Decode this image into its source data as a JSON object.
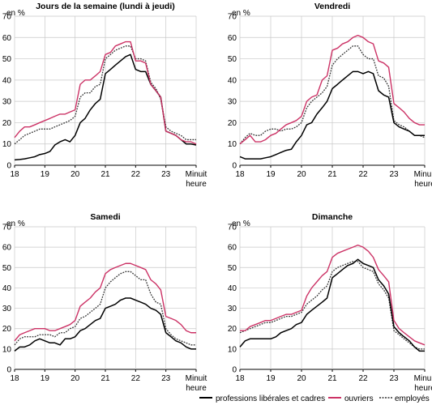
{
  "colors": {
    "professions": "#000000",
    "ouvriers": "#cc3366",
    "employes": "#333333"
  },
  "legend": [
    {
      "key": "professions",
      "label": "professions libérales et cadres",
      "style": "solid"
    },
    {
      "key": "ouvriers",
      "label": "ouvriers",
      "style": "solid"
    },
    {
      "key": "employes",
      "label": "employés",
      "style": "dotted"
    }
  ],
  "chart_data": [
    {
      "type": "line",
      "title": "Jours de la semaine (lundi à jeudi)",
      "ylabel": "en %",
      "xlabel": "heure",
      "ylim": [
        0,
        70
      ],
      "xlim": [
        18,
        24
      ],
      "yticks": [
        "0",
        "10",
        "20",
        "30",
        "40",
        "50",
        "60",
        "70"
      ],
      "xticks": [
        "18",
        "19",
        "20",
        "21",
        "22",
        "23",
        "Minuit"
      ],
      "x": [
        18.0,
        18.17,
        18.33,
        18.5,
        18.67,
        18.83,
        19.0,
        19.17,
        19.33,
        19.5,
        19.67,
        19.83,
        20.0,
        20.17,
        20.33,
        20.5,
        20.67,
        20.83,
        21.0,
        21.17,
        21.33,
        21.5,
        21.67,
        21.83,
        22.0,
        22.17,
        22.33,
        22.5,
        22.67,
        22.83,
        23.0,
        23.17,
        23.33,
        23.5,
        23.67,
        23.83,
        24.0
      ],
      "series": [
        {
          "name": "professions libérales et cadres",
          "key": "professions",
          "values": [
            2.5,
            2.7,
            3,
            3.5,
            4,
            5,
            5.5,
            6.5,
            9.5,
            11,
            12,
            11,
            14,
            20,
            22,
            26,
            29,
            31,
            43,
            45,
            47,
            49,
            51,
            52,
            45,
            44,
            44,
            38,
            35,
            32,
            16,
            15,
            14,
            12,
            10,
            10,
            9.5
          ]
        },
        {
          "name": "ouvriers",
          "key": "ouvriers",
          "values": [
            13,
            16,
            18,
            18,
            19,
            20,
            21,
            22,
            23,
            24,
            24,
            25,
            26,
            38,
            40,
            40,
            42,
            44,
            52,
            53,
            56,
            57,
            58,
            58,
            49,
            49,
            48,
            38,
            35,
            32,
            16,
            15,
            14,
            12,
            11,
            11,
            10
          ]
        },
        {
          "name": "employés",
          "key": "employes",
          "values": [
            10,
            12,
            14,
            15,
            16,
            17,
            17,
            17,
            18,
            19,
            20,
            21,
            23,
            32,
            34,
            34,
            37,
            38,
            50,
            52,
            54,
            55,
            56,
            56,
            50,
            50,
            49,
            39,
            36,
            31,
            18,
            16,
            15,
            14,
            12,
            12,
            12
          ]
        }
      ]
    },
    {
      "type": "line",
      "title": "Vendredi",
      "ylabel": "en %",
      "xlabel": "heure",
      "ylim": [
        0,
        70
      ],
      "xlim": [
        18,
        24
      ],
      "yticks": [
        "0",
        "10",
        "20",
        "30",
        "40",
        "50",
        "60",
        "70"
      ],
      "xticks": [
        "18",
        "19",
        "20",
        "21",
        "22",
        "23",
        "Minuit"
      ],
      "x": [
        18.0,
        18.17,
        18.33,
        18.5,
        18.67,
        18.83,
        19.0,
        19.17,
        19.33,
        19.5,
        19.67,
        19.83,
        20.0,
        20.17,
        20.33,
        20.5,
        20.67,
        20.83,
        21.0,
        21.17,
        21.33,
        21.5,
        21.67,
        21.83,
        22.0,
        22.17,
        22.33,
        22.5,
        22.67,
        22.83,
        23.0,
        23.17,
        23.33,
        23.5,
        23.67,
        23.83,
        24.0
      ],
      "series": [
        {
          "name": "professions libérales et cadres",
          "key": "professions",
          "values": [
            4,
            3,
            3,
            3,
            3,
            3.5,
            4,
            5,
            6,
            7,
            7.5,
            11,
            14,
            19,
            20,
            24,
            27,
            30,
            36,
            38,
            40,
            42,
            44,
            44,
            43,
            44,
            43,
            35,
            33,
            32,
            20,
            18,
            17,
            16,
            14,
            14,
            14
          ]
        },
        {
          "name": "ouvriers",
          "key": "ouvriers",
          "values": [
            10,
            12,
            14,
            11,
            11,
            12,
            14,
            15,
            17,
            19,
            20,
            21,
            23,
            30,
            32,
            33,
            40,
            42,
            54,
            55,
            57,
            58,
            60,
            61,
            60,
            58,
            57,
            49,
            48,
            46,
            29,
            27,
            25,
            22,
            20,
            19,
            19
          ]
        },
        {
          "name": "employés",
          "key": "employes",
          "values": [
            10,
            13,
            15,
            14,
            14,
            16,
            17,
            17,
            16,
            17,
            17,
            18,
            20,
            27,
            30,
            32,
            34,
            37,
            47,
            50,
            52,
            54,
            56,
            56,
            52,
            50,
            50,
            42,
            41,
            37,
            21,
            19,
            18,
            16,
            14,
            14,
            13
          ]
        }
      ]
    },
    {
      "type": "line",
      "title": "Samedi",
      "ylabel": "en %",
      "xlabel": "heure",
      "ylim": [
        0,
        70
      ],
      "xlim": [
        18,
        24
      ],
      "yticks": [
        "0",
        "10",
        "20",
        "30",
        "40",
        "50",
        "60",
        "70"
      ],
      "xticks": [
        "18",
        "19",
        "20",
        "21",
        "22",
        "23",
        "Minuit"
      ],
      "x": [
        18.0,
        18.17,
        18.33,
        18.5,
        18.67,
        18.83,
        19.0,
        19.17,
        19.33,
        19.5,
        19.67,
        19.83,
        20.0,
        20.17,
        20.33,
        20.5,
        20.67,
        20.83,
        21.0,
        21.17,
        21.33,
        21.5,
        21.67,
        21.83,
        22.0,
        22.17,
        22.33,
        22.5,
        22.67,
        22.83,
        23.0,
        23.17,
        23.33,
        23.5,
        23.67,
        23.83,
        24.0
      ],
      "series": [
        {
          "name": "professions libérales et cadres",
          "key": "professions",
          "values": [
            9,
            11,
            11,
            12,
            14,
            15,
            14,
            13,
            13,
            12,
            15,
            15,
            16,
            19,
            20,
            22,
            24,
            25,
            30,
            31,
            32,
            34,
            35,
            35,
            34,
            33,
            32,
            30,
            29,
            27,
            18,
            16,
            14,
            13,
            11,
            10,
            10
          ]
        },
        {
          "name": "ouvriers",
          "key": "ouvriers",
          "values": [
            14,
            17,
            18,
            19,
            20,
            20,
            20,
            19,
            19,
            20,
            21,
            22,
            24,
            31,
            33,
            35,
            38,
            40,
            47,
            49,
            50,
            51,
            52,
            52,
            51,
            50,
            49,
            44,
            42,
            39,
            26,
            25,
            24,
            22,
            19,
            18,
            18
          ]
        },
        {
          "name": "employés",
          "key": "employes",
          "values": [
            12,
            15,
            16,
            16,
            16,
            17,
            17,
            17,
            16,
            18,
            18,
            20,
            21,
            25,
            26,
            28,
            30,
            32,
            40,
            43,
            45,
            47,
            48,
            48,
            46,
            44,
            44,
            37,
            33,
            32,
            20,
            17,
            15,
            14,
            13,
            12,
            12
          ]
        }
      ]
    },
    {
      "type": "line",
      "title": "Dimanche",
      "ylabel": "en %",
      "xlabel": "heure",
      "ylim": [
        0,
        70
      ],
      "xlim": [
        18,
        24
      ],
      "yticks": [
        "0",
        "10",
        "20",
        "30",
        "40",
        "50",
        "60",
        "70"
      ],
      "xticks": [
        "18",
        "19",
        "20",
        "21",
        "22",
        "23",
        "Minuit"
      ],
      "x": [
        18.0,
        18.17,
        18.33,
        18.5,
        18.67,
        18.83,
        19.0,
        19.17,
        19.33,
        19.5,
        19.67,
        19.83,
        20.0,
        20.17,
        20.33,
        20.5,
        20.67,
        20.83,
        21.0,
        21.17,
        21.33,
        21.5,
        21.67,
        21.83,
        22.0,
        22.17,
        22.33,
        22.5,
        22.67,
        22.83,
        23.0,
        23.17,
        23.33,
        23.5,
        23.67,
        23.83,
        24.0
      ],
      "series": [
        {
          "name": "professions libérales et cadres",
          "key": "professions",
          "values": [
            11,
            14,
            15,
            15,
            15,
            15,
            15,
            16,
            18,
            19,
            20,
            22,
            23,
            27,
            29,
            31,
            33,
            35,
            45,
            47,
            49,
            51,
            52,
            54,
            52,
            51,
            50,
            44,
            41,
            37,
            21,
            18,
            16,
            14,
            11,
            9,
            9
          ]
        },
        {
          "name": "ouvriers",
          "key": "ouvriers",
          "values": [
            19,
            19,
            21,
            22,
            23,
            24,
            24,
            25,
            26,
            27,
            27,
            28,
            29,
            36,
            40,
            43,
            46,
            48,
            55,
            57,
            58,
            59,
            60,
            61,
            60,
            58,
            55,
            49,
            46,
            43,
            24,
            20,
            18,
            16,
            14,
            13,
            12
          ]
        },
        {
          "name": "employés",
          "key": "employes",
          "values": [
            18,
            19,
            20,
            21,
            22,
            23,
            23,
            24,
            25,
            26,
            26,
            27,
            28,
            32,
            34,
            36,
            39,
            41,
            48,
            50,
            51,
            52,
            53,
            53,
            50,
            49,
            48,
            42,
            39,
            35,
            19,
            17,
            15,
            13,
            11,
            10,
            10
          ]
        }
      ]
    }
  ]
}
